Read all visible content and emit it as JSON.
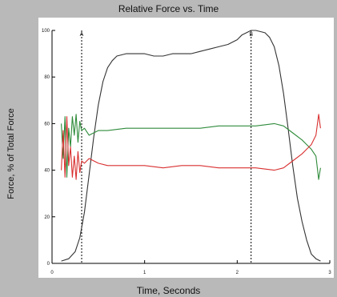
{
  "chart_data": {
    "type": "line",
    "title": "Relative Force vs. Time",
    "xlabel": "Time, Seconds",
    "ylabel": "Force, % of Total Force",
    "xlim": [
      0,
      3
    ],
    "ylim": [
      0,
      100
    ],
    "x_ticks": [
      {
        "value": 0,
        "label": "0"
      },
      {
        "value": 1,
        "label": "1"
      },
      {
        "value": 2,
        "label": "2"
      },
      {
        "value": 3,
        "label": "3"
      }
    ],
    "y_ticks": [
      {
        "value": 0,
        "label": "0"
      },
      {
        "value": 20,
        "label": "20"
      },
      {
        "value": 40,
        "label": "40"
      },
      {
        "value": 60,
        "label": "60"
      },
      {
        "value": 80,
        "label": "80"
      },
      {
        "value": 100,
        "label": "100"
      }
    ],
    "grid": false,
    "markers": [
      {
        "x": 0.32,
        "label": "A"
      },
      {
        "x": 2.15,
        "label": "B"
      }
    ],
    "series": [
      {
        "color": "#333333",
        "x": [
          0.1,
          0.18,
          0.25,
          0.3,
          0.35,
          0.4,
          0.45,
          0.5,
          0.55,
          0.6,
          0.65,
          0.7,
          0.8,
          0.9,
          1.0,
          1.1,
          1.2,
          1.3,
          1.4,
          1.5,
          1.6,
          1.7,
          1.8,
          1.9,
          2.0,
          2.05,
          2.1,
          2.15,
          2.2,
          2.3,
          2.35,
          2.4,
          2.45,
          2.5,
          2.55,
          2.6,
          2.65,
          2.7,
          2.75,
          2.8,
          2.85,
          2.9
        ],
        "values": [
          1,
          2,
          5,
          11,
          22,
          38,
          54,
          68,
          78,
          84,
          87,
          89,
          90,
          90,
          90,
          89,
          89,
          90,
          90,
          90,
          91,
          92,
          93,
          94,
          96,
          98,
          99,
          100,
          100,
          99,
          97,
          93,
          85,
          73,
          58,
          42,
          28,
          18,
          10,
          4,
          2,
          1
        ]
      },
      {
        "color": "#2e8b3a",
        "x": [
          0.1,
          0.12,
          0.14,
          0.16,
          0.18,
          0.2,
          0.22,
          0.24,
          0.26,
          0.28,
          0.3,
          0.32,
          0.35,
          0.4,
          0.5,
          0.6,
          0.8,
          1.0,
          1.2,
          1.4,
          1.6,
          1.8,
          2.0,
          2.2,
          2.4,
          2.5,
          2.6,
          2.7,
          2.75,
          2.8,
          2.85,
          2.88,
          2.9
        ],
        "values": [
          60,
          45,
          63,
          37,
          58,
          50,
          63,
          55,
          64,
          52,
          61,
          57,
          58,
          55,
          57,
          57,
          58,
          58,
          58,
          58,
          58,
          59,
          59,
          59,
          60,
          59,
          56,
          53,
          51,
          49,
          46,
          36,
          41
        ]
      },
      {
        "color": "#d93030",
        "x": [
          0.1,
          0.12,
          0.14,
          0.16,
          0.18,
          0.2,
          0.22,
          0.24,
          0.26,
          0.28,
          0.3,
          0.32,
          0.35,
          0.4,
          0.5,
          0.6,
          0.8,
          1.0,
          1.2,
          1.4,
          1.6,
          1.8,
          2.0,
          2.2,
          2.4,
          2.5,
          2.6,
          2.7,
          2.75,
          2.8,
          2.85,
          2.88,
          2.9
        ],
        "values": [
          40,
          57,
          37,
          63,
          42,
          50,
          37,
          46,
          36,
          48,
          39,
          44,
          43,
          45,
          43,
          42,
          42,
          42,
          41,
          42,
          42,
          41,
          41,
          41,
          40,
          41,
          44,
          47,
          49,
          51,
          55,
          64,
          58
        ]
      }
    ]
  }
}
